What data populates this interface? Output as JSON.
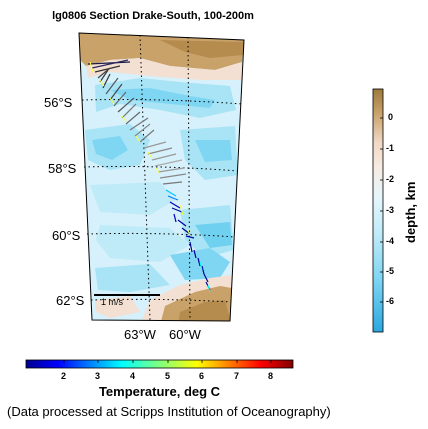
{
  "title": "lg0806 Section Drake-South, 100-200m",
  "map": {
    "lat_labels": [
      "56°S",
      "58°S",
      "60°S",
      "62°S"
    ],
    "lon_labels": [
      "63°W",
      "60°W"
    ],
    "scale_vector_label": "1 m/s"
  },
  "depth_colorbar": {
    "label": "depth, km",
    "ticks": [
      "0",
      "-1",
      "-2",
      "-3",
      "-4",
      "-5",
      "-6"
    ],
    "colors": {
      "land_dark": "#9c7a3c",
      "land_light": "#c9a26a",
      "shelf": "#f5e6dc",
      "shallow": "#d8f2fb",
      "mid": "#a8e4f5",
      "deep": "#6fd0f0",
      "abyss": "#2aa8e0"
    }
  },
  "temp_colorbar": {
    "label": "Temperature, deg C",
    "ticks": [
      "2",
      "3",
      "4",
      "5",
      "6",
      "7",
      "8"
    ]
  },
  "credit": "(Data processed at Scripps Institution of Oceanography)"
}
